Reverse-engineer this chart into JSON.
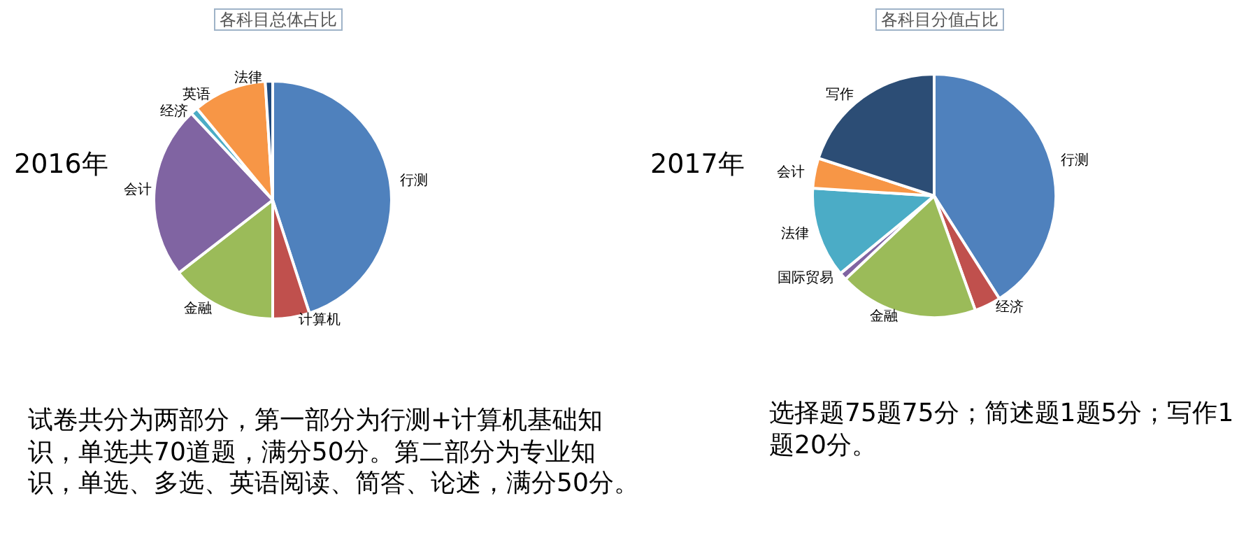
{
  "chart_data": [
    {
      "type": "pie",
      "title": "各科目总体占比",
      "subtitle": "2016年",
      "categories": [
        "行测",
        "计算机",
        "金融",
        "会计",
        "经济",
        "英语",
        "法律"
      ],
      "values": [
        45,
        5,
        14.5,
        23.5,
        1,
        10,
        1
      ],
      "colors": [
        "#4f81bd",
        "#c0504d",
        "#9bbb59",
        "#8064a2",
        "#4bacc6",
        "#f79646",
        "#1f497d"
      ],
      "annotations": [
        "试卷共分为两部分，第一部分为行测+计算机基础知识，单选共70道题，满分50分。第二部分为专业知识，单选、多选、英语阅读、简答、论述，满分50分。"
      ]
    },
    {
      "type": "pie",
      "title": "各科目分值占比",
      "subtitle": "2017年",
      "categories": [
        "行测",
        "经济",
        "金融",
        "国际贸易",
        "法律",
        "会计",
        "写作"
      ],
      "values": [
        41,
        3.5,
        18.5,
        1,
        12,
        4,
        20
      ],
      "colors": [
        "#4f81bd",
        "#c0504d",
        "#9bbb59",
        "#8064a2",
        "#4bacc6",
        "#f79646",
        "#2c4d75"
      ],
      "annotations": [
        "选择题75题75分；简述题1题5分；写作1题20分。"
      ]
    }
  ]
}
